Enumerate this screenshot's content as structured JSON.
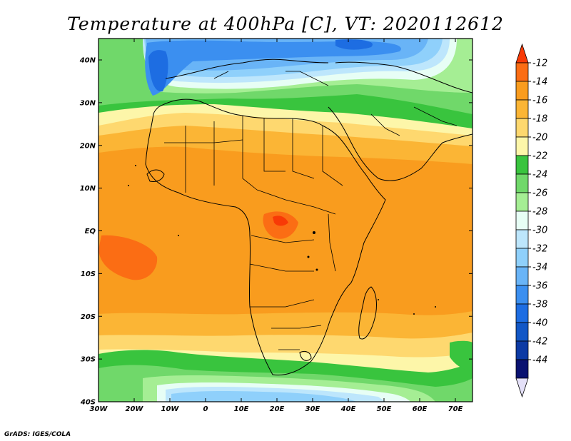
{
  "title": "Temperature at 400hPa [C], VT: 2020112612",
  "footer": "GrADS: IGES/COLA",
  "map": {
    "lon_ticks": [
      "30W",
      "20W",
      "10W",
      "0",
      "10E",
      "20E",
      "30E",
      "40E",
      "50E",
      "60E",
      "70E"
    ],
    "lat_ticks": [
      "40N",
      "30N",
      "20N",
      "10N",
      "EQ",
      "10S",
      "20S",
      "30S",
      "40S"
    ]
  },
  "colorbar": {
    "labels": [
      "-12",
      "-14",
      "-16",
      "-18",
      "-20",
      "-22",
      "-24",
      "-26",
      "-28",
      "-30",
      "-32",
      "-34",
      "-36",
      "-38",
      "-40",
      "-42",
      "-44"
    ],
    "colors": [
      "#f83a06",
      "#fb6d14",
      "#f99c1e",
      "#fbb535",
      "#fed86f",
      "#fdf6a9",
      "#39c43e",
      "#70d86a",
      "#a5ee94",
      "#e7fef5",
      "#bde6fc",
      "#8fd0fb",
      "#69b4f7",
      "#3b8ff0",
      "#1d6de2",
      "#1257c6",
      "#0c3aa4",
      "#0a1271",
      "#e4e0f8"
    ]
  }
}
